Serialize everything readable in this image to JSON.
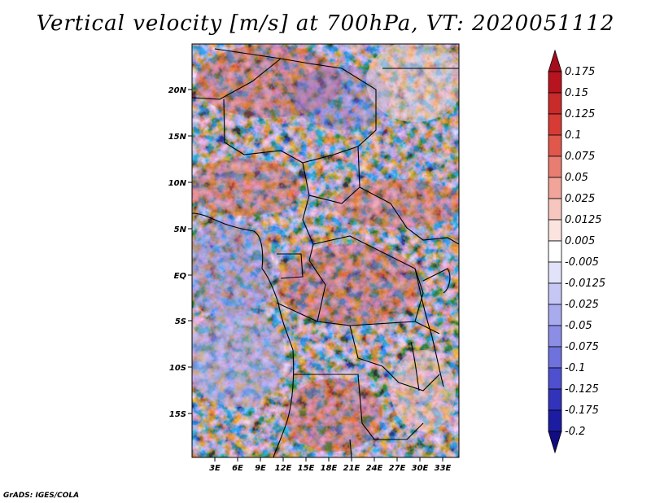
{
  "title": "Vertical velocity [m/s] at 700hPa, VT: 2020051112",
  "credit": "GrADS: IGES/COLA",
  "map": {
    "lat_labels": [
      "20N",
      "15N",
      "10N",
      "5N",
      "EQ",
      "5S",
      "10S",
      "15S"
    ],
    "lon_labels": [
      "3E",
      "6E",
      "9E",
      "12E",
      "15E",
      "18E",
      "21E",
      "24E",
      "27E",
      "30E",
      "33E"
    ]
  },
  "colorbar": {
    "labels": [
      "0.175",
      "0.15",
      "0.125",
      "0.1",
      "0.075",
      "0.05",
      "0.025",
      "0.0125",
      "0.005",
      "-0.005",
      "-0.0125",
      "-0.025",
      "-0.05",
      "-0.075",
      "-0.1",
      "-0.125",
      "-0.175",
      "-0.2"
    ],
    "colors": [
      "#a50d1d",
      "#b7141f",
      "#c92a2a",
      "#d73b36",
      "#e0574c",
      "#e97d72",
      "#f1a49a",
      "#f7c7bf",
      "#fbe4df",
      "#ffffff",
      "#e2e3fb",
      "#c6c7f5",
      "#a9abef",
      "#8c8ee6",
      "#6f71dc",
      "#4f50cf",
      "#3233bb",
      "#1c1ca3",
      "#120c82"
    ]
  }
}
